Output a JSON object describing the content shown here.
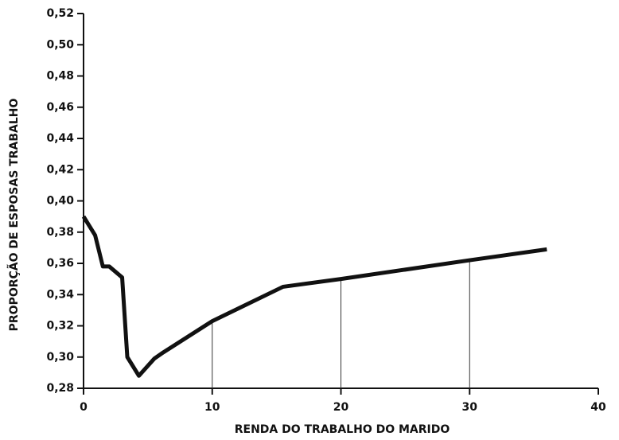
{
  "chart_data": {
    "type": "line",
    "x_label": "RENDA DO TRABALHO DO MARIDO",
    "y_label": "PROPORÇÃO DE ESPOSAS TRABALHO",
    "x": [
      0,
      0.9,
      1.5,
      2,
      3,
      3.4,
      4.3,
      5.5,
      6.2,
      10,
      15.5,
      20,
      30,
      36
    ],
    "series": [
      {
        "name": "proporção",
        "color": "#111111",
        "values": [
          0.39,
          0.378,
          0.358,
          0.358,
          0.351,
          0.3,
          0.288,
          0.299,
          0.303,
          0.323,
          0.345,
          0.35,
          0.362,
          0.369
        ]
      }
    ],
    "xlim": [
      0,
      40
    ],
    "xticks": [
      0,
      10,
      20,
      30,
      40
    ],
    "ylim": [
      0.28,
      0.52
    ],
    "yticks": [
      {
        "value": 0.28,
        "label": "0,28"
      },
      {
        "value": 0.3,
        "label": "0,30"
      },
      {
        "value": 0.32,
        "label": "0,32"
      },
      {
        "value": 0.34,
        "label": "0,34"
      },
      {
        "value": 0.36,
        "label": "0,36"
      },
      {
        "value": 0.38,
        "label": "0,38"
      },
      {
        "value": 0.4,
        "label": "0,40"
      },
      {
        "value": 0.42,
        "label": "0,42"
      },
      {
        "value": 0.44,
        "label": "0,44"
      },
      {
        "value": 0.46,
        "label": "0,46"
      },
      {
        "value": 0.48,
        "label": "0,48"
      },
      {
        "value": 0.5,
        "label": "0,50"
      },
      {
        "value": 0.52,
        "label": "0,52"
      }
    ],
    "grid": true
  }
}
